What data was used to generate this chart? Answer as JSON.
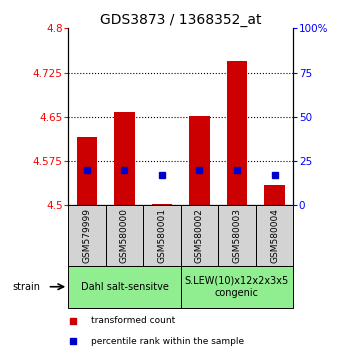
{
  "title": "GDS3873 / 1368352_at",
  "samples": [
    "GSM579999",
    "GSM580000",
    "GSM580001",
    "GSM580002",
    "GSM580003",
    "GSM580004"
  ],
  "transformed_counts": [
    4.615,
    4.658,
    4.502,
    4.652,
    4.745,
    4.535
  ],
  "percentile_ranks": [
    20,
    20,
    17,
    20,
    20,
    17
  ],
  "bar_bottom": 4.5,
  "ylim_left": [
    4.5,
    4.8
  ],
  "ylim_right": [
    0,
    100
  ],
  "yticks_left": [
    4.5,
    4.575,
    4.65,
    4.725,
    4.8
  ],
  "yticks_right": [
    0,
    25,
    50,
    75,
    100
  ],
  "ytick_labels_left": [
    "4.5",
    "4.575",
    "4.65",
    "4.725",
    "4.8"
  ],
  "ytick_labels_right": [
    "0",
    "25",
    "50",
    "75",
    "100%"
  ],
  "group1_label": "Dahl salt-sensitve",
  "group2_label": "S.LEW(10)x12x2x3x5\ncongenic",
  "group1_indices": [
    0,
    1,
    2
  ],
  "group2_indices": [
    3,
    4,
    5
  ],
  "bar_color": "#cc0000",
  "dot_color": "#0000cc",
  "group1_bg": "#90ee90",
  "group2_bg": "#90ee90",
  "sample_bg": "#d3d3d3",
  "legend_red_label": "transformed count",
  "legend_blue_label": "percentile rank within the sample",
  "strain_label": "strain",
  "title_fontsize": 10,
  "tick_fontsize": 7.5,
  "sample_fontsize": 6.5,
  "group_fontsize": 7,
  "legend_fontsize": 6.5
}
